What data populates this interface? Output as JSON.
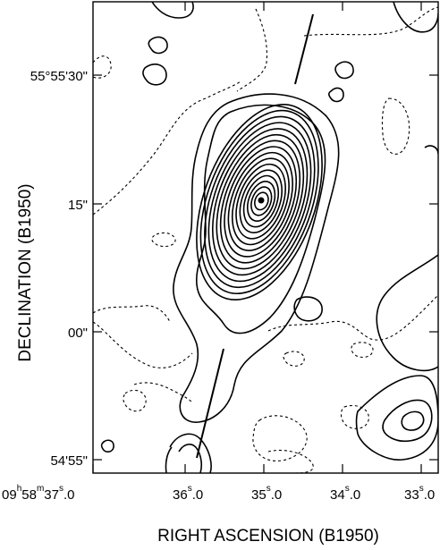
{
  "chart_data": {
    "type": "contour",
    "xlabel": "RIGHT ASCENSION (B1950)",
    "ylabel": "DECLINATION (B1950)",
    "x_ticks": [
      {
        "h": "09",
        "m": "58",
        "s": "37",
        "frac": "0",
        "full": true
      },
      {
        "s": "36",
        "frac": "0"
      },
      {
        "s": "35",
        "frac": "0"
      },
      {
        "s": "34",
        "frac": "0"
      },
      {
        "s": "33",
        "frac": "0"
      }
    ],
    "y_ticks": [
      "55°55'30\"",
      "15\"",
      "00\"",
      "54'55\""
    ],
    "peak": {
      "ra": "09h58m35.0s",
      "dec": "55°55'15\""
    },
    "positive_contour_levels": 16,
    "negative_contours": "dashed"
  }
}
